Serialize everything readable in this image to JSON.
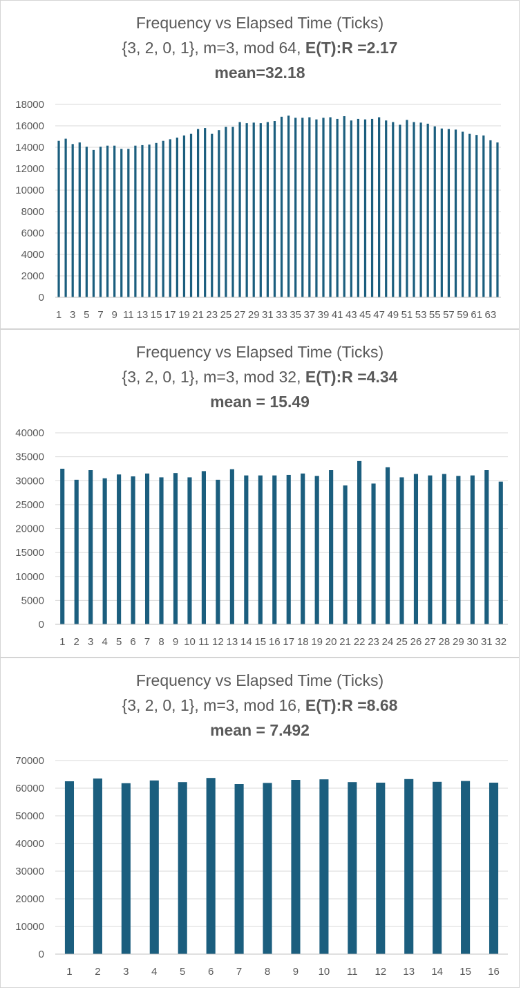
{
  "colors": {
    "bar": "#1b5e7e",
    "grid": "#d9d9d9",
    "axis": "#bfbfbf",
    "text": "#595959"
  },
  "chart_data": [
    {
      "type": "bar",
      "title": "Frequency vs Elapsed Time (Ticks)",
      "subtitle_prefix": "{3, 2, 0, 1}, m=3, mod 64, ",
      "subtitle_bold": "E(T):R =2.17",
      "mean_label": "mean=32.18",
      "xlabel": "",
      "ylabel": "",
      "ylim": [
        0,
        18000
      ],
      "yticks": [
        0,
        2000,
        4000,
        6000,
        8000,
        10000,
        12000,
        14000,
        16000,
        18000
      ],
      "categories": [
        1,
        2,
        3,
        4,
        5,
        6,
        7,
        8,
        9,
        10,
        11,
        12,
        13,
        14,
        15,
        16,
        17,
        18,
        19,
        20,
        21,
        22,
        23,
        24,
        25,
        26,
        27,
        28,
        29,
        30,
        31,
        32,
        33,
        34,
        35,
        36,
        37,
        38,
        39,
        40,
        41,
        42,
        43,
        44,
        45,
        46,
        47,
        48,
        49,
        50,
        51,
        52,
        53,
        54,
        55,
        56,
        57,
        58,
        59,
        60,
        61,
        62,
        63,
        64
      ],
      "tick_step": 2,
      "values": [
        14600,
        14800,
        14300,
        14450,
        14050,
        13750,
        14050,
        14150,
        14150,
        13850,
        13850,
        14150,
        14200,
        14250,
        14400,
        14600,
        14750,
        14900,
        15100,
        15250,
        15700,
        15800,
        15250,
        15600,
        15900,
        15900,
        16350,
        16250,
        16300,
        16250,
        16350,
        16450,
        16850,
        16950,
        16750,
        16750,
        16800,
        16600,
        16750,
        16800,
        16650,
        16900,
        16500,
        16650,
        16600,
        16650,
        16800,
        16500,
        16350,
        16100,
        16550,
        16350,
        16300,
        16200,
        15950,
        15750,
        15700,
        15650,
        15450,
        15250,
        15150,
        15100,
        14650,
        14450
      ],
      "grid": true,
      "legend": "none"
    },
    {
      "type": "bar",
      "title": "Frequency vs Elapsed Time (Ticks)",
      "subtitle_prefix": "{3, 2, 0, 1}, m=3, mod 32, ",
      "subtitle_bold": "E(T):R =4.34",
      "mean_label": "mean = 15.49",
      "xlabel": "",
      "ylabel": "",
      "ylim": [
        0,
        40000
      ],
      "yticks": [
        0,
        5000,
        10000,
        15000,
        20000,
        25000,
        30000,
        35000,
        40000
      ],
      "categories": [
        1,
        2,
        3,
        4,
        5,
        6,
        7,
        8,
        9,
        10,
        11,
        12,
        13,
        14,
        15,
        16,
        17,
        18,
        19,
        20,
        21,
        22,
        23,
        24,
        25,
        26,
        27,
        28,
        29,
        30,
        31,
        32
      ],
      "tick_step": 1,
      "values": [
        32500,
        30200,
        32200,
        30500,
        31300,
        30900,
        31500,
        30700,
        31600,
        30700,
        32000,
        30200,
        32400,
        31100,
        31100,
        31100,
        31200,
        31500,
        31000,
        32200,
        29000,
        34100,
        29400,
        32800,
        30700,
        31400,
        31100,
        31400,
        31000,
        31100,
        32200,
        29800
      ],
      "grid": true,
      "legend": "none"
    },
    {
      "type": "bar",
      "title": "Frequency vs Elapsed Time (Ticks)",
      "subtitle_prefix": "{3, 2, 0, 1}, m=3, mod 16, ",
      "subtitle_bold": "E(T):R =8.68",
      "mean_label": "mean = 7.492",
      "xlabel": "",
      "ylabel": "",
      "ylim": [
        0,
        70000
      ],
      "yticks": [
        0,
        10000,
        20000,
        30000,
        40000,
        50000,
        60000,
        70000
      ],
      "categories": [
        1,
        2,
        3,
        4,
        5,
        6,
        7,
        8,
        9,
        10,
        11,
        12,
        13,
        14,
        15,
        16
      ],
      "tick_step": 1,
      "values": [
        62500,
        63500,
        61800,
        62800,
        62200,
        63700,
        61500,
        61900,
        63000,
        63200,
        62200,
        62000,
        63300,
        62300,
        62600,
        62000
      ],
      "grid": true,
      "legend": "none"
    }
  ]
}
